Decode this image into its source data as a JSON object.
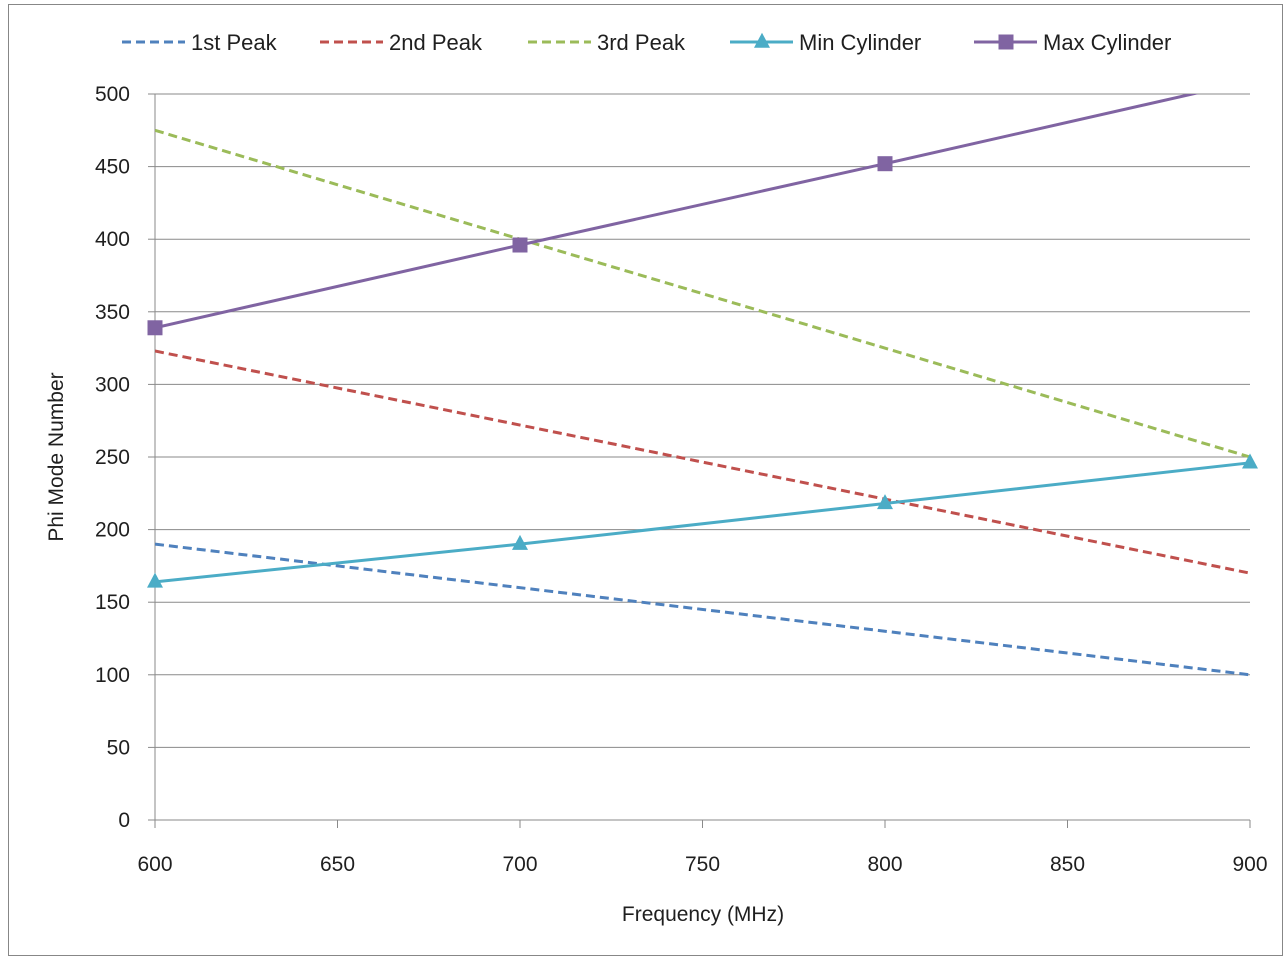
{
  "chart_data": {
    "type": "line",
    "title": "",
    "xlabel": "Frequency (MHz)",
    "ylabel": "Phi Mode Number",
    "xlim": [
      600,
      900
    ],
    "ylim": [
      0,
      500
    ],
    "x_ticks": [
      600,
      650,
      700,
      750,
      800,
      850,
      900
    ],
    "y_ticks": [
      0,
      50,
      100,
      150,
      200,
      250,
      300,
      350,
      400,
      450,
      500
    ],
    "grid": "horizontal",
    "legend_position": "top",
    "series": [
      {
        "name": "1st Peak",
        "color": "#4F81BD",
        "style": "dashed",
        "marker": "none",
        "points": [
          [
            600,
            190
          ],
          [
            900,
            100
          ]
        ]
      },
      {
        "name": "2nd Peak",
        "color": "#C0504D",
        "style": "dashed",
        "marker": "none",
        "points": [
          [
            600,
            323
          ],
          [
            900,
            170
          ]
        ]
      },
      {
        "name": "3rd Peak",
        "color": "#9BBB59",
        "style": "dashed",
        "marker": "none",
        "points": [
          [
            600,
            475
          ],
          [
            900,
            250
          ]
        ]
      },
      {
        "name": "Min Cylinder",
        "color": "#4BACC6",
        "style": "solid",
        "marker": "triangle",
        "points": [
          [
            600,
            164
          ],
          [
            700,
            190
          ],
          [
            800,
            218
          ],
          [
            900,
            246
          ]
        ]
      },
      {
        "name": "Max Cylinder",
        "color": "#8064A2",
        "style": "solid",
        "marker": "square",
        "points": [
          [
            600,
            339
          ],
          [
            700,
            396
          ],
          [
            800,
            452
          ],
          [
            900,
            509
          ]
        ]
      }
    ]
  }
}
